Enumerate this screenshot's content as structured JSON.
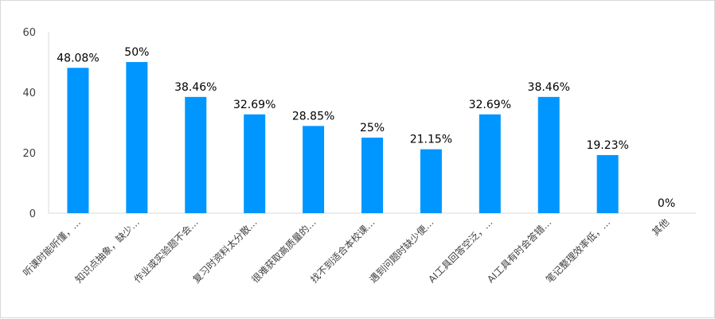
{
  "chart_data": {
    "type": "bar",
    "categories": [
      "听课时能听懂，…",
      "知识点抽象，缺少…",
      "作业或实验题不会…",
      "复习时资料太分散…",
      "很难获取高质量的…",
      "找不到适合本校课…",
      "遇到问题时缺少便…",
      "AI工具回答空泛，…",
      "AI工具有时会答错…",
      "笔记整理效率低，…",
      "其他"
    ],
    "values": [
      48.08,
      50,
      38.46,
      32.69,
      28.85,
      25,
      21.15,
      32.69,
      38.46,
      19.23,
      0
    ],
    "data_labels": [
      "48.08%",
      "50%",
      "38.46%",
      "32.69%",
      "28.85%",
      "25%",
      "21.15%",
      "32.69%",
      "38.46%",
      "19.23%",
      "0%"
    ],
    "yticks": [
      "0",
      "20",
      "40",
      "60"
    ],
    "ylim": [
      0,
      60
    ],
    "bar_color": "#0096FF",
    "grid": false,
    "title": "",
    "xlabel": "",
    "ylabel": ""
  }
}
